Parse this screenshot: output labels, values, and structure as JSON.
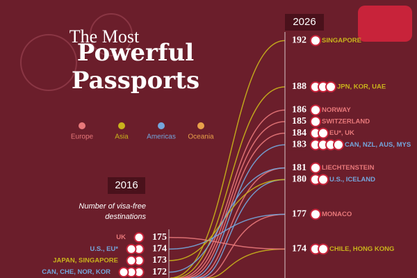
{
  "chart_data": {
    "type": "slope",
    "title": "The Most",
    "title_emphasis": "Powerful Passports",
    "background": "#6b1e2b",
    "legend": [
      {
        "name": "Europe",
        "color": "#e8787a"
      },
      {
        "name": "Asia",
        "color": "#c9b31c"
      },
      {
        "name": "Americas",
        "color": "#74a6dc"
      },
      {
        "name": "Oceania",
        "color": "#e9a14a"
      }
    ],
    "ylim": [
      171.5,
      195.5
    ],
    "start": {
      "year": "2016",
      "subtitle": "Number of visa-free destinations",
      "labels": [
        "UK",
        "U.S., EU*",
        "JAPAN, SINGAPORE",
        "CAN, CHE, NOR, KOR"
      ],
      "values": [
        175,
        174,
        173,
        172
      ],
      "colors": [
        "#e8787a",
        "#74a6dc",
        "#c9b31c",
        "#74a6dc"
      ]
    },
    "end": {
      "year": "2026",
      "labels": [
        "SINGAPORE",
        "JPN, KOR, UAE",
        "NORWAY",
        "SWITZERLAND",
        "EU*, UK",
        "CAN, NZL, AUS, MYS",
        "LIECHTENSTEIN",
        "U.S., ICELAND",
        "MONACO",
        "CHILE, HONG KONG"
      ],
      "values": [
        192,
        188,
        186,
        185,
        184,
        183,
        181,
        180,
        177,
        174
      ],
      "colors": [
        "#c9b31c",
        "#c9b31c",
        "#e8787a",
        "#e8787a",
        "#e8787a",
        "#74a6dc",
        "#e8787a",
        "#74a6dc",
        "#e8787a",
        "#c9b31c"
      ]
    }
  }
}
